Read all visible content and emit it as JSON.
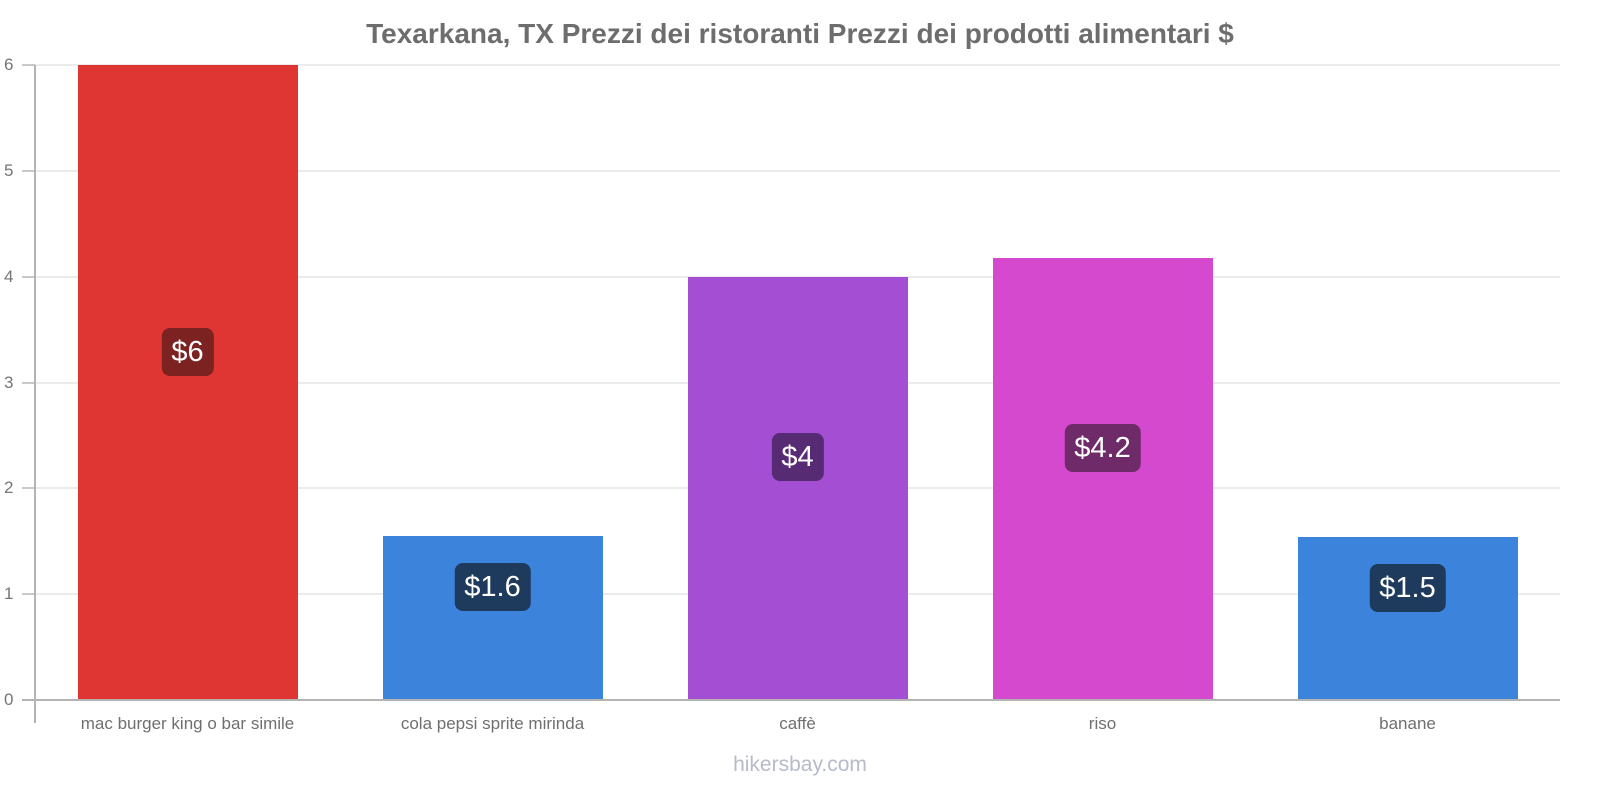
{
  "title": "Texarkana, TX Prezzi dei ristoranti Prezzi dei prodotti alimentari $",
  "footer": "hikersbay.com",
  "chart_data": {
    "type": "bar",
    "title": "Texarkana, TX Prezzi dei ristoranti Prezzi dei prodotti alimentari $",
    "categories": [
      "mac burger king o bar simile",
      "cola pepsi sprite mirinda",
      "caffè",
      "riso",
      "banane"
    ],
    "values": [
      6,
      1.55,
      4,
      4.18,
      1.54
    ],
    "value_labels": [
      "$6",
      "$1.6",
      "$4",
      "$4.2",
      "$1.5"
    ],
    "bar_colors": [
      "#df3633",
      "#3b83db",
      "#a44fd3",
      "#d449ce",
      "#3b83db"
    ],
    "badge_colors": [
      "#7c2322",
      "#1e3b5e",
      "#562b73",
      "#6f2b69",
      "#1e3b5e"
    ],
    "xlabel": "",
    "ylabel": "",
    "ylim": [
      0,
      6
    ],
    "yticks": [
      0,
      1,
      2,
      3,
      4,
      5,
      6
    ],
    "grid": true,
    "legend": "none",
    "currency": "$"
  },
  "style": {
    "axis_color": "#b3b3b3",
    "grid_color": "#ebebeb",
    "tick_label_color": "#757575",
    "category_label_color": "#6f6f6f",
    "title_color": "#6d6d6d",
    "watermark_color": "#b6bac9"
  }
}
